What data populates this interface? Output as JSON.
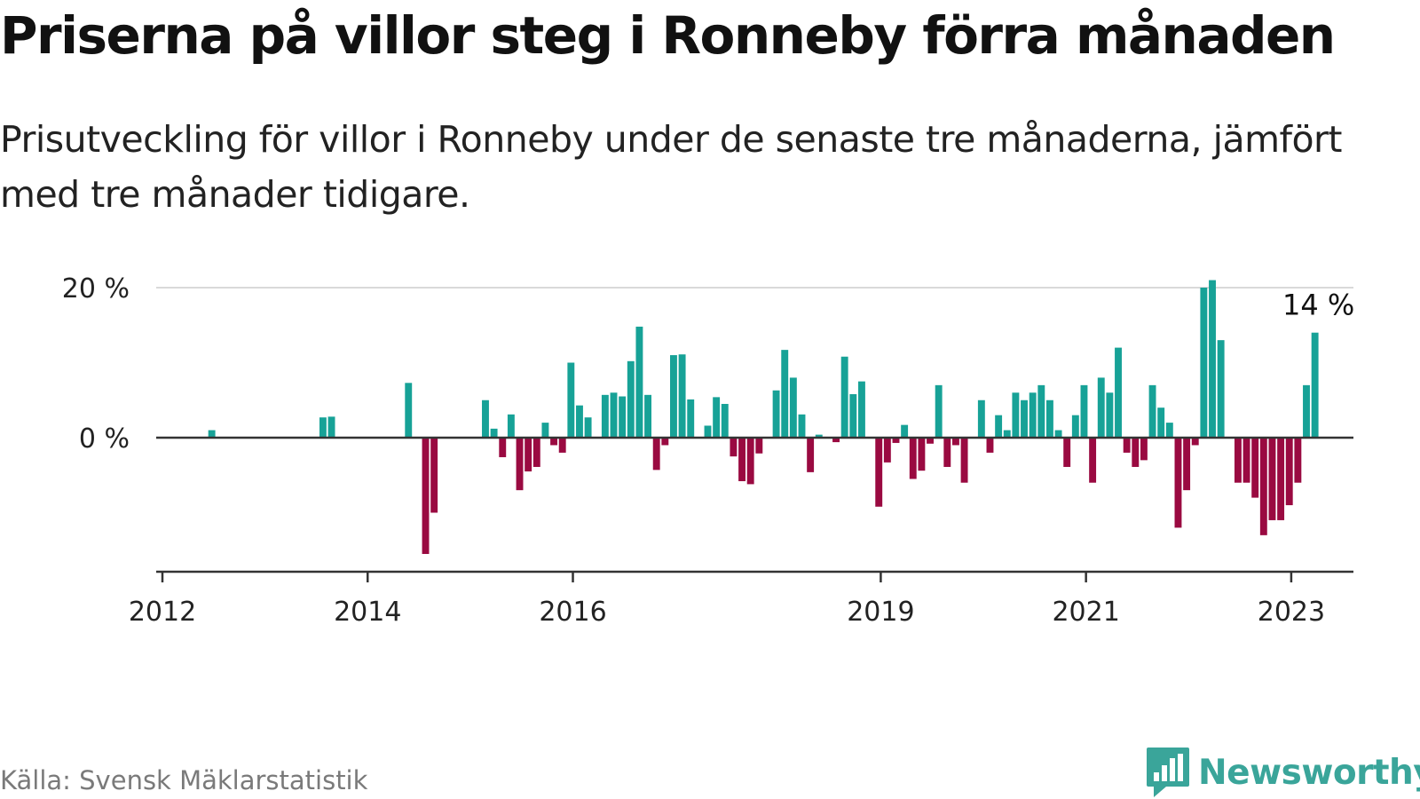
{
  "header": {
    "title": "Priserna på villor steg i Ronneby förra månaden",
    "subtitle": "Prisutveckling för villor i Ronneby under de senaste tre månaderna, jämfört med tre månader tidigare."
  },
  "footer": {
    "source": "Källa: Svensk Mäklarstatistik",
    "brand": "Newsworthy"
  },
  "colors": {
    "positive": "#17a297",
    "negative": "#9a0a41",
    "baseline": "#333333",
    "grid": "#d9d9d9",
    "brand": "#3aa59a"
  },
  "chart_data": {
    "type": "bar",
    "title": "Priserna på villor steg i Ronneby förra månaden",
    "subtitle": "Prisutveckling för villor i Ronneby under de senaste tre månaderna, jämfört med tre månader tidigare.",
    "x_start": "2012-01",
    "x_end": "2023-08",
    "x_tick_labels": [
      {
        "date": "2012-01",
        "label": "2012"
      },
      {
        "date": "2014-01",
        "label": "2014"
      },
      {
        "date": "2016-01",
        "label": "2016"
      },
      {
        "date": "2019-01",
        "label": "2019"
      },
      {
        "date": "2021-01",
        "label": "2021"
      },
      {
        "date": "2023-01",
        "label": "2023"
      }
    ],
    "y_tick_labels": [
      {
        "value": 0,
        "label": "0 %"
      },
      {
        "value": 20,
        "label": "20 %"
      }
    ],
    "ylim": [
      -18,
      20
    ],
    "grid": true,
    "unit": "%",
    "last_value_label": "14 %",
    "series": [
      {
        "values": [
          {
            "date": "2012-07",
            "value": 1
          },
          {
            "date": "2013-08",
            "value": 2.7
          },
          {
            "date": "2013-09",
            "value": 2.8
          },
          {
            "date": "2014-06",
            "value": 7.3
          },
          {
            "date": "2014-08",
            "value": -15.5
          },
          {
            "date": "2014-09",
            "value": -10
          },
          {
            "date": "2015-03",
            "value": 5
          },
          {
            "date": "2015-04",
            "value": 1.2
          },
          {
            "date": "2015-05",
            "value": -2.6
          },
          {
            "date": "2015-06",
            "value": 3.1
          },
          {
            "date": "2015-07",
            "value": -7
          },
          {
            "date": "2015-08",
            "value": -4.5
          },
          {
            "date": "2015-09",
            "value": -3.9
          },
          {
            "date": "2015-10",
            "value": 2
          },
          {
            "date": "2015-11",
            "value": -1
          },
          {
            "date": "2015-12",
            "value": -2
          },
          {
            "date": "2016-01",
            "value": 10
          },
          {
            "date": "2016-02",
            "value": 4.3
          },
          {
            "date": "2016-03",
            "value": 2.7
          },
          {
            "date": "2016-05",
            "value": 5.7
          },
          {
            "date": "2016-06",
            "value": 6
          },
          {
            "date": "2016-07",
            "value": 5.5
          },
          {
            "date": "2016-08",
            "value": 10.2
          },
          {
            "date": "2016-09",
            "value": 14.8
          },
          {
            "date": "2016-10",
            "value": 5.7
          },
          {
            "date": "2016-11",
            "value": -4.3
          },
          {
            "date": "2016-12",
            "value": -1
          },
          {
            "date": "2017-01",
            "value": 11
          },
          {
            "date": "2017-02",
            "value": 11.1
          },
          {
            "date": "2017-03",
            "value": 5.1
          },
          {
            "date": "2017-05",
            "value": 1.6
          },
          {
            "date": "2017-06",
            "value": 5.4
          },
          {
            "date": "2017-07",
            "value": 4.5
          },
          {
            "date": "2017-08",
            "value": -2.5
          },
          {
            "date": "2017-09",
            "value": -5.8
          },
          {
            "date": "2017-10",
            "value": -6.2
          },
          {
            "date": "2017-11",
            "value": -2.1
          },
          {
            "date": "2018-01",
            "value": 6.3
          },
          {
            "date": "2018-02",
            "value": 11.7
          },
          {
            "date": "2018-03",
            "value": 8
          },
          {
            "date": "2018-04",
            "value": 3.1
          },
          {
            "date": "2018-05",
            "value": -4.6
          },
          {
            "date": "2018-06",
            "value": 0.4
          },
          {
            "date": "2018-08",
            "value": -0.6
          },
          {
            "date": "2018-09",
            "value": 10.8
          },
          {
            "date": "2018-10",
            "value": 5.8
          },
          {
            "date": "2018-11",
            "value": 7.5
          },
          {
            "date": "2019-01",
            "value": -9.2
          },
          {
            "date": "2019-02",
            "value": -3.3
          },
          {
            "date": "2019-03",
            "value": -0.7
          },
          {
            "date": "2019-04",
            "value": 1.7
          },
          {
            "date": "2019-05",
            "value": -5.5
          },
          {
            "date": "2019-06",
            "value": -4.4
          },
          {
            "date": "2019-07",
            "value": -0.8
          },
          {
            "date": "2019-08",
            "value": 7
          },
          {
            "date": "2019-09",
            "value": -3.9
          },
          {
            "date": "2019-10",
            "value": -1
          },
          {
            "date": "2019-11",
            "value": -6
          },
          {
            "date": "2020-01",
            "value": 5
          },
          {
            "date": "2020-02",
            "value": -2
          },
          {
            "date": "2020-03",
            "value": 3
          },
          {
            "date": "2020-04",
            "value": 1
          },
          {
            "date": "2020-05",
            "value": 6
          },
          {
            "date": "2020-06",
            "value": 5
          },
          {
            "date": "2020-07",
            "value": 6
          },
          {
            "date": "2020-08",
            "value": 7
          },
          {
            "date": "2020-09",
            "value": 5
          },
          {
            "date": "2020-10",
            "value": 1
          },
          {
            "date": "2020-11",
            "value": -3.9
          },
          {
            "date": "2020-12",
            "value": 3
          },
          {
            "date": "2021-01",
            "value": 7
          },
          {
            "date": "2021-02",
            "value": -6
          },
          {
            "date": "2021-03",
            "value": 8
          },
          {
            "date": "2021-04",
            "value": 6
          },
          {
            "date": "2021-05",
            "value": 12
          },
          {
            "date": "2021-06",
            "value": -2
          },
          {
            "date": "2021-07",
            "value": -3.9
          },
          {
            "date": "2021-08",
            "value": -3
          },
          {
            "date": "2021-09",
            "value": 7
          },
          {
            "date": "2021-10",
            "value": 4
          },
          {
            "date": "2021-11",
            "value": 2
          },
          {
            "date": "2021-12",
            "value": -12
          },
          {
            "date": "2022-01",
            "value": -7
          },
          {
            "date": "2022-02",
            "value": -1
          },
          {
            "date": "2022-03",
            "value": 20
          },
          {
            "date": "2022-04",
            "value": 21
          },
          {
            "date": "2022-05",
            "value": 13
          },
          {
            "date": "2022-07",
            "value": -6
          },
          {
            "date": "2022-08",
            "value": -6
          },
          {
            "date": "2022-09",
            "value": -8
          },
          {
            "date": "2022-10",
            "value": -13
          },
          {
            "date": "2022-11",
            "value": -11
          },
          {
            "date": "2022-12",
            "value": -11
          },
          {
            "date": "2023-01",
            "value": -9
          },
          {
            "date": "2023-02",
            "value": -6
          },
          {
            "date": "2023-03",
            "value": 7
          },
          {
            "date": "2023-04",
            "value": 14
          }
        ]
      }
    ]
  }
}
